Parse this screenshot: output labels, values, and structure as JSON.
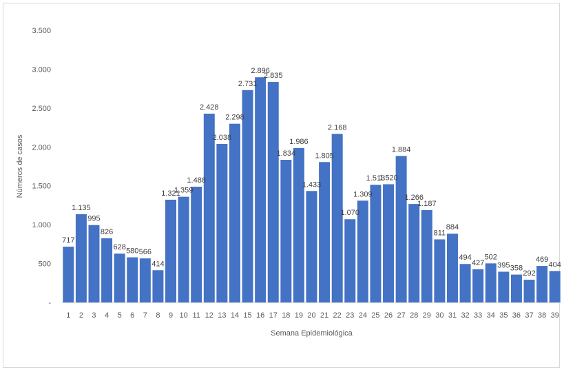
{
  "chart_data": {
    "type": "bar",
    "title": "",
    "xlabel": "Semana Epidemiológica",
    "ylabel": "Números de casos",
    "categories": [
      "1",
      "2",
      "3",
      "4",
      "5",
      "6",
      "7",
      "8",
      "9",
      "10",
      "11",
      "12",
      "13",
      "14",
      "15",
      "16",
      "17",
      "18",
      "19",
      "20",
      "21",
      "22",
      "23",
      "24",
      "25",
      "26",
      "27",
      "28",
      "29",
      "30",
      "31",
      "32",
      "33",
      "34",
      "35",
      "36",
      "37",
      "38",
      "39"
    ],
    "values": [
      717,
      1135,
      995,
      826,
      628,
      580,
      566,
      414,
      1321,
      1359,
      1488,
      2428,
      2038,
      2298,
      2731,
      2896,
      2835,
      1834,
      1986,
      1433,
      1805,
      2168,
      1070,
      1309,
      1513,
      1520,
      1884,
      1266,
      1187,
      811,
      884,
      494,
      427,
      502,
      395,
      358,
      292,
      469,
      404
    ],
    "value_labels": [
      "717",
      "1.135",
      "995",
      "826",
      "628",
      "580",
      "566",
      "414",
      "1.321",
      "1.359",
      "1.488",
      "2.428",
      "2.038",
      "2.298",
      "2.731",
      "2.896",
      "2.835",
      "1.834",
      "1.986",
      "1.433",
      "1.805",
      "2.168",
      "1.070",
      "1.309",
      "1.513",
      "1.520",
      "1.884",
      "1.266",
      "1.187",
      "811",
      "884",
      "494",
      "427",
      "502",
      "395",
      "358",
      "292",
      "469",
      "404"
    ],
    "ylim": [
      0,
      3500
    ],
    "yticks": [
      0,
      500,
      1000,
      1500,
      2000,
      2500,
      3000,
      3500
    ],
    "ytick_labels": [
      "-",
      "500",
      "1.000",
      "1.500",
      "2.000",
      "2.500",
      "3.000",
      "3.500"
    ],
    "bar_color": "#4472C4",
    "grid": false,
    "legend": "none"
  }
}
